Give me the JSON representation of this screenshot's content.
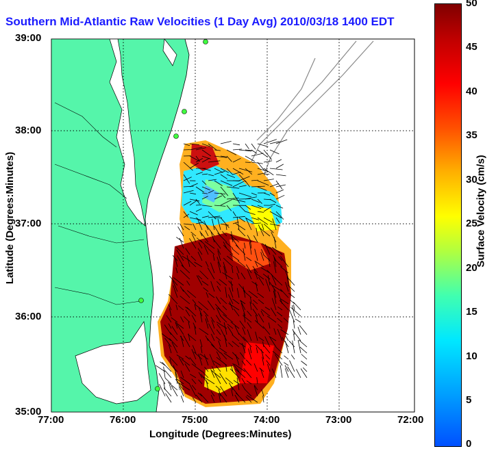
{
  "title": "Southern Mid-Atlantic Raw Velocities (1 Day Avg) 2010/03/18 1400 EDT",
  "map": {
    "xlabel": "Longitude (Degrees:Minutes)",
    "ylabel": "Latitude (Degrees:Minutes)",
    "x_ticks": [
      "77:00",
      "76:00",
      "75:00",
      "74:00",
      "73:00",
      "72:00"
    ],
    "y_ticks": [
      "39:00",
      "38:00",
      "37:00",
      "36:00",
      "35:00"
    ],
    "land_color": "#55f5aa",
    "grid": true,
    "stations": 5
  },
  "colorbar": {
    "label": "Surface Velocity (cm/s)",
    "ticks": [
      "50",
      "45",
      "40",
      "35",
      "30",
      "25",
      "20",
      "15",
      "10",
      "5",
      "0"
    ],
    "range": [
      0,
      50
    ],
    "colormap": "jet"
  }
}
